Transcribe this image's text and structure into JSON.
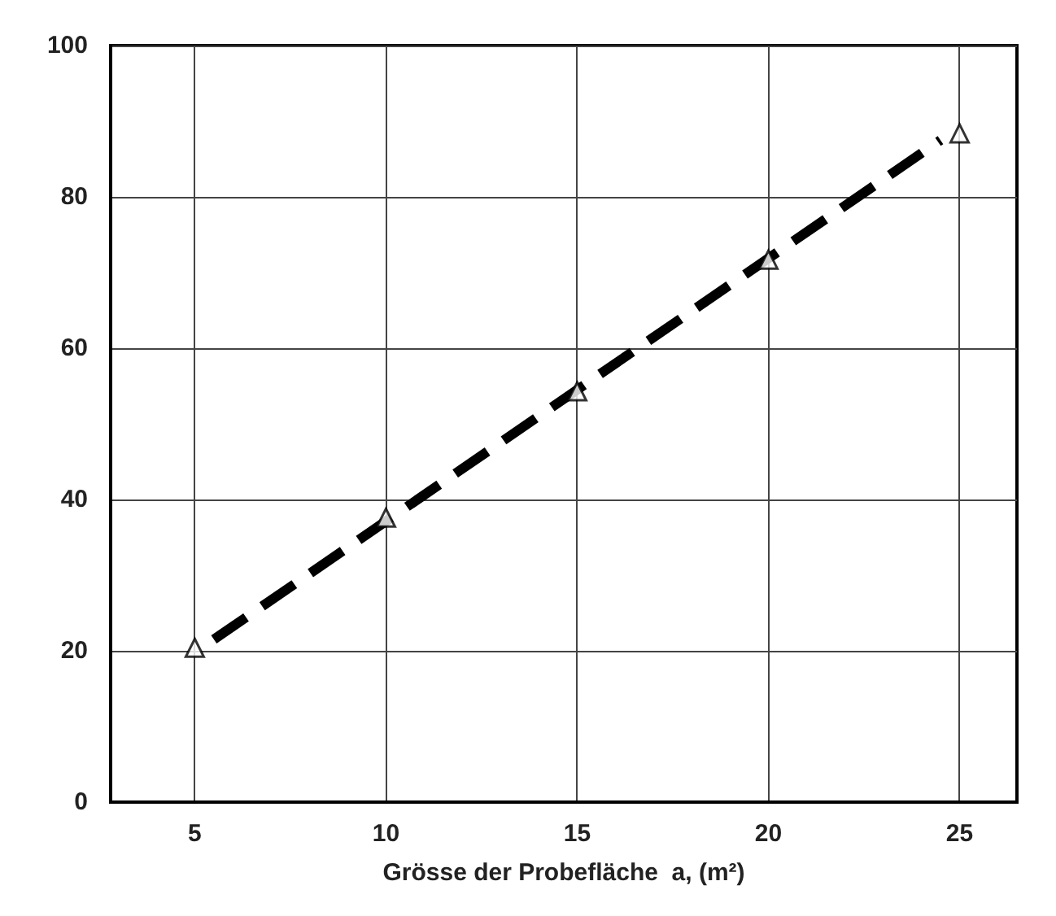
{
  "chart_data": {
    "type": "scatter",
    "xlabel": "Grösse der Probefläche  a, (m²)",
    "xlim": [
      2.8,
      26.5
    ],
    "xticks": [
      5,
      10,
      15,
      20,
      25
    ],
    "ylim": [
      0,
      100
    ],
    "yticks": [
      0,
      20,
      40,
      60,
      80,
      100
    ],
    "grid": true,
    "series": [
      {
        "marker": "triangle",
        "color": "#000000",
        "x": [
          5,
          10,
          15,
          20,
          25
        ],
        "values": [
          20.4,
          37.6,
          54.3,
          71.7,
          88.4
        ]
      },
      {
        "type": "line",
        "line_style": "dashed",
        "color": "#000000",
        "x": [
          5.5,
          24.5
        ],
        "values": [
          21.5,
          87.5
        ]
      }
    ]
  }
}
